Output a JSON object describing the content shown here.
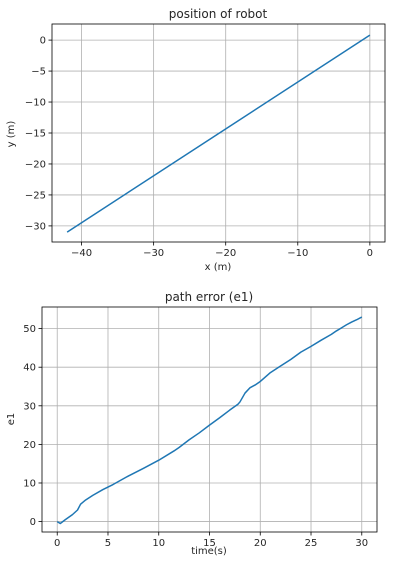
{
  "chart_data": [
    {
      "type": "line",
      "title": "position of robot",
      "xlabel": "x (m)",
      "ylabel": "y (m)",
      "xlim": [
        -44.1,
        2.1
      ],
      "ylim": [
        -32.6,
        2.6
      ],
      "xticks": [
        -40,
        -30,
        -20,
        -10,
        0
      ],
      "yticks": [
        -30,
        -25,
        -20,
        -15,
        -10,
        -5,
        0
      ],
      "grid": true,
      "series": [
        {
          "color": "#1f77b4",
          "x": [
            -42,
            0
          ],
          "y": [
            -31,
            0.8
          ]
        }
      ]
    },
    {
      "type": "line",
      "title": "path error (e1)",
      "xlabel": "time(s)",
      "ylabel": "e1",
      "xlim": [
        -1.5,
        31.5
      ],
      "ylim": [
        -2.7,
        55.6
      ],
      "xticks": [
        0,
        5,
        10,
        15,
        20,
        25,
        30
      ],
      "yticks": [
        0,
        10,
        20,
        30,
        40,
        50
      ],
      "grid": true,
      "series": [
        {
          "color": "#1f77b4",
          "x": [
            0,
            0.3,
            0.8,
            1.5,
            2,
            2.3,
            2.8,
            3.5,
            4.5,
            5.5,
            7,
            8.5,
            10,
            11.5,
            12,
            13,
            14,
            15,
            16,
            17,
            17.8,
            18,
            18.5,
            19,
            19.5,
            20,
            21,
            22,
            23,
            24,
            25,
            26,
            27,
            27.5,
            28,
            28.5,
            29,
            29.5,
            30
          ],
          "y": [
            0,
            -0.5,
            0.5,
            1.8,
            3,
            4.5,
            5.6,
            6.8,
            8.3,
            9.6,
            11.8,
            13.8,
            15.9,
            18.3,
            19.2,
            21.2,
            23,
            25,
            26.9,
            28.9,
            30.4,
            31,
            33.3,
            34.7,
            35.4,
            36.3,
            38.6,
            40.3,
            42,
            43.9,
            45.4,
            47,
            48.5,
            49.4,
            50.2,
            51,
            51.7,
            52.3,
            53
          ]
        }
      ]
    }
  ]
}
